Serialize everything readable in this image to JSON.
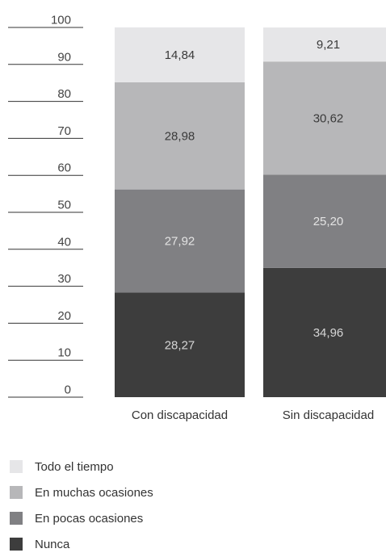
{
  "chart_data": {
    "type": "stacked-bar",
    "categories": [
      "Con discapacidad",
      "Sin discapacidad"
    ],
    "series": [
      {
        "name": "Nunca",
        "color": "#3d3d3d",
        "values": [
          28.27,
          34.96
        ],
        "labels": [
          "28,27",
          "34,96"
        ],
        "label_color": "#d6d6d6"
      },
      {
        "name": "En pocas ocasiones",
        "color": "#808083",
        "values": [
          27.92,
          25.2
        ],
        "labels": [
          "27,92",
          "25,20"
        ],
        "label_color": "#e3e3e3"
      },
      {
        "name": "En muchas ocasiones",
        "color": "#b7b7b9",
        "values": [
          28.98,
          30.62
        ],
        "labels": [
          "28,98",
          "30,62"
        ],
        "label_color": "#3a3a3a"
      },
      {
        "name": "Todo el tiempo",
        "color": "#e6e6e8",
        "values": [
          14.84,
          9.21
        ],
        "labels": [
          "14,84",
          "9,21"
        ],
        "label_color": "#3a3a3a"
      }
    ],
    "y_ticks": [
      "0",
      "10",
      "20",
      "30",
      "40",
      "50",
      "60",
      "70",
      "80",
      "90",
      "100"
    ],
    "ylim": [
      0,
      100
    ],
    "grid": false,
    "legend_position": "bottom-left"
  }
}
